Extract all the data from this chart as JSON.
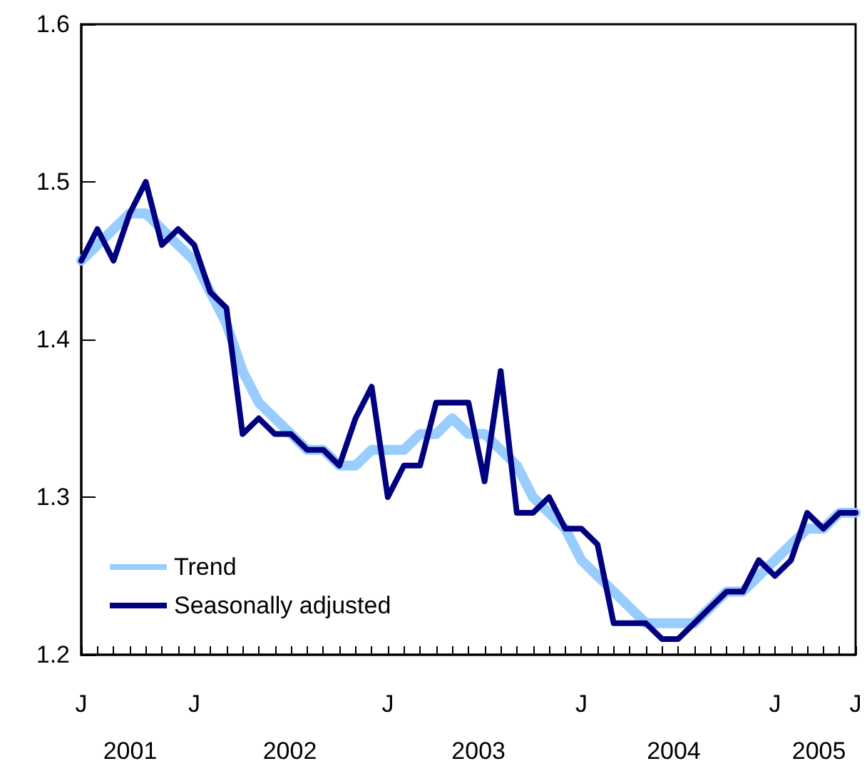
{
  "chart_data": {
    "type": "line",
    "categories": [
      "J",
      null,
      null,
      null,
      null,
      null,
      null,
      "J",
      null,
      null,
      null,
      null,
      null,
      null,
      null,
      null,
      null,
      null,
      null,
      "J",
      null,
      null,
      null,
      null,
      null,
      null,
      null,
      null,
      null,
      null,
      null,
      "J",
      null,
      null,
      null,
      null,
      null,
      null,
      null,
      null,
      null,
      null,
      null,
      "J",
      null,
      null,
      null,
      null,
      "J"
    ],
    "series": [
      {
        "name": "Trend",
        "color": "#99ccff",
        "values": [
          1.45,
          1.46,
          1.47,
          1.48,
          1.48,
          1.47,
          1.46,
          1.45,
          1.43,
          1.41,
          1.38,
          1.36,
          1.35,
          1.34,
          1.33,
          1.33,
          1.32,
          1.32,
          1.33,
          1.33,
          1.33,
          1.34,
          1.34,
          1.35,
          1.34,
          1.34,
          1.33,
          1.32,
          1.3,
          1.29,
          1.28,
          1.26,
          1.25,
          1.24,
          1.23,
          1.22,
          1.22,
          1.22,
          1.22,
          1.23,
          1.24,
          1.24,
          1.25,
          1.26,
          1.27,
          1.28,
          1.28,
          1.29,
          1.29
        ]
      },
      {
        "name": "Seasonally adjusted",
        "color": "#000080",
        "values": [
          1.45,
          1.47,
          1.45,
          1.48,
          1.5,
          1.46,
          1.47,
          1.46,
          1.43,
          1.42,
          1.34,
          1.35,
          1.34,
          1.34,
          1.33,
          1.33,
          1.32,
          1.35,
          1.37,
          1.3,
          1.32,
          1.32,
          1.36,
          1.36,
          1.36,
          1.31,
          1.38,
          1.29,
          1.29,
          1.3,
          1.28,
          1.28,
          1.27,
          1.22,
          1.22,
          1.22,
          1.21,
          1.21,
          1.22,
          1.23,
          1.24,
          1.24,
          1.26,
          1.25,
          1.26,
          1.29,
          1.28,
          1.29,
          1.29
        ]
      }
    ],
    "annotations": [
      "2001",
      "2002",
      "2003",
      "2004",
      "2005"
    ],
    "ylim": [
      1.2,
      1.6
    ],
    "yticks": [
      1.2,
      1.3,
      1.4,
      1.5,
      1.6
    ],
    "legend": "bottom left",
    "marker": "none",
    "line_style": "solid"
  }
}
